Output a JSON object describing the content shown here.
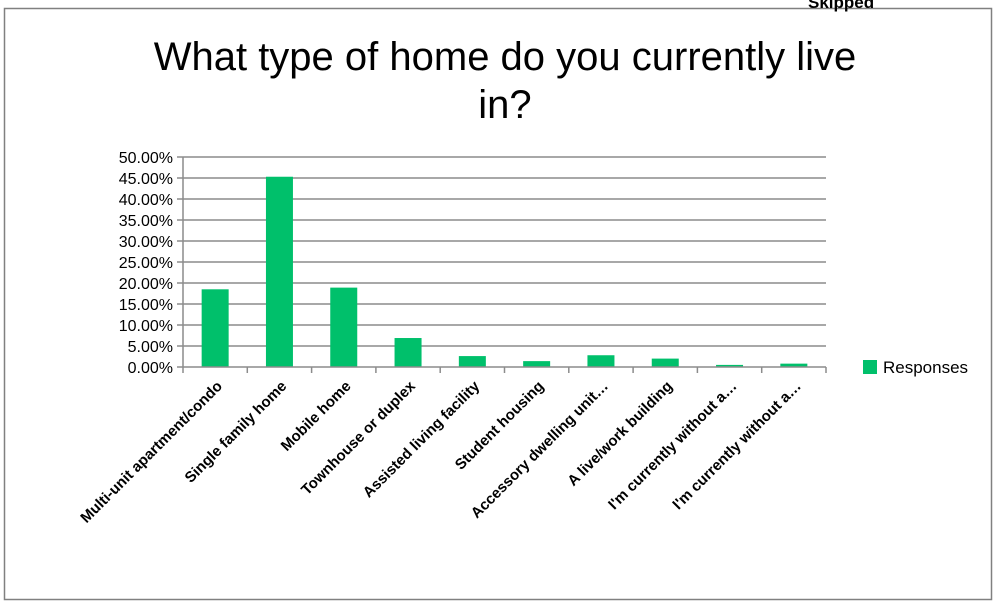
{
  "corner_label": "Skipped",
  "chart_data": {
    "type": "bar",
    "title": "What type of home do you currently live in?",
    "title_lines": [
      "What type of home do you currently live",
      "in?"
    ],
    "categories": [
      "Multi-unit apartment/condo",
      "Single family home",
      "Mobile home",
      "Townhouse or duplex",
      "Assisted living facility",
      "Student housing",
      "Accessory dwelling unit…",
      "A live/work building",
      "I'm currently without a…",
      "I'm currently without a…"
    ],
    "series": [
      {
        "name": "Responses",
        "color": "#00c06b",
        "values": [
          18.5,
          45.3,
          18.9,
          6.9,
          2.6,
          1.4,
          2.8,
          2.0,
          0.5,
          0.8
        ]
      }
    ],
    "ylim": [
      0,
      50
    ],
    "yticks": [
      "0.00%",
      "5.00%",
      "10.00%",
      "15.00%",
      "20.00%",
      "25.00%",
      "30.00%",
      "35.00%",
      "40.00%",
      "45.00%",
      "50.00%"
    ],
    "grid": true,
    "legend": "right"
  }
}
